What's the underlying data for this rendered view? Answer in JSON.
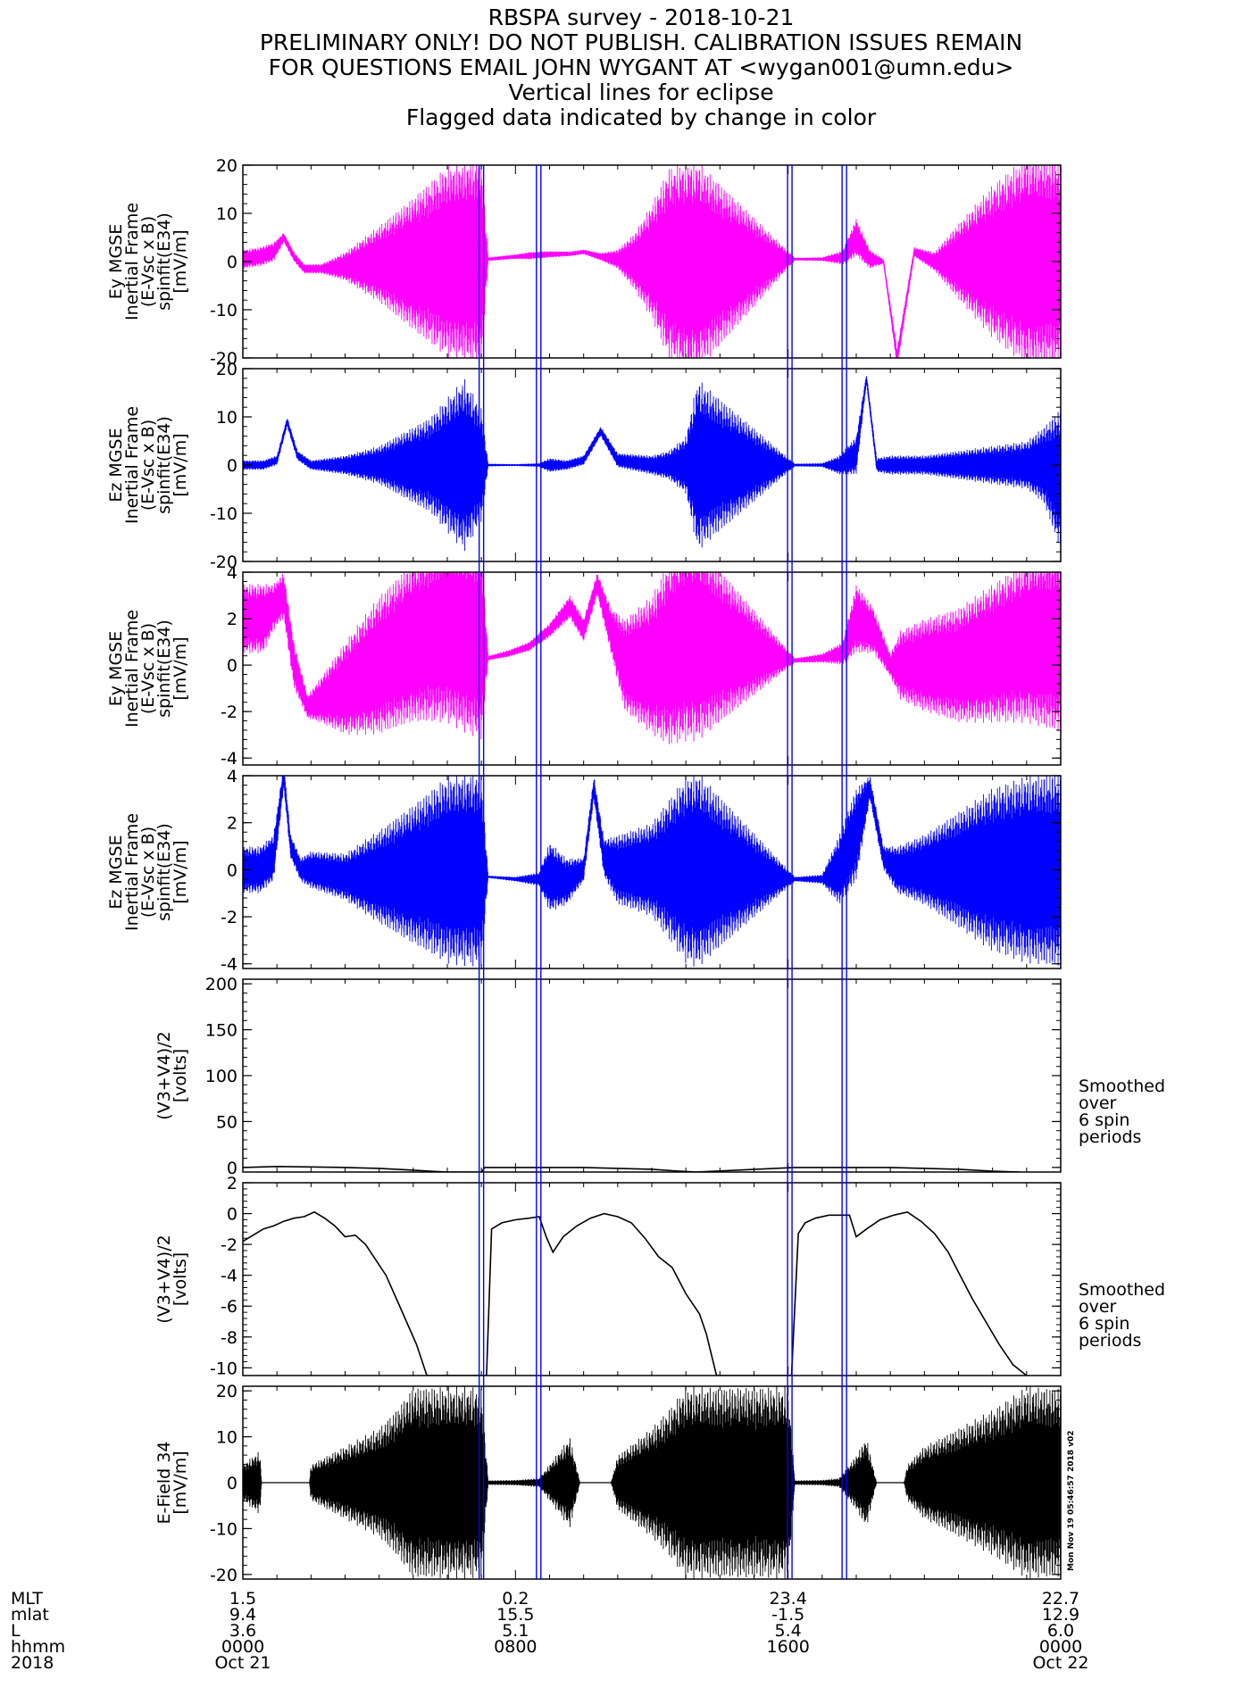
{
  "chart_data": {
    "type": "line",
    "title_lines": [
      "RBSPA survey - 2018-10-21",
      "PRELIMINARY ONLY! DO NOT PUBLISH. CALIBRATION ISSUES REMAIN",
      "FOR QUESTIONS EMAIL JOHN WYGANT AT <wygan001@umn.edu>",
      "Vertical lines for eclipse",
      "Flagged data indicated by change in color"
    ],
    "x_unit": "hours since 2018-10-21 0000",
    "xlim": [
      0,
      24
    ],
    "eclipse_lines_hours": [
      7.0,
      8.68,
      16.05,
      17.65
    ],
    "panels": [
      {
        "ylabel": [
          "Ey MGSE",
          "Inertial Frame",
          "(E-Vsc x B)",
          "spinfit(E34)",
          "[mV/m]"
        ],
        "ylim": [
          -20,
          20
        ],
        "yticks": [
          -20,
          -10,
          0,
          10,
          20
        ],
        "color": "#ff00ff",
        "style": "band",
        "x": [
          0,
          0.5,
          0.9,
          1.2,
          1.5,
          1.8,
          2.3,
          3,
          4,
          5,
          6,
          7,
          7.2,
          8,
          8.4,
          9,
          9.6,
          10,
          10.5,
          11,
          11.5,
          12,
          12.5,
          13,
          13.35,
          16.2,
          17,
          17.6,
          18,
          18.4,
          18.8,
          19.2,
          19.7,
          20.3,
          21,
          22,
          23,
          24
        ],
        "center": [
          0.5,
          1,
          2,
          5,
          1,
          -1.5,
          -1.5,
          -1,
          -0.5,
          -0.5,
          0,
          0,
          0.5,
          1,
          1.2,
          1.5,
          1.6,
          2,
          1,
          0.5,
          0,
          0,
          -0.5,
          -1,
          -1,
          0.5,
          0.5,
          0.8,
          5,
          0.5,
          0,
          -20,
          2,
          0,
          0,
          0,
          0,
          0
        ],
        "amp": [
          2,
          2,
          2,
          1,
          1,
          1,
          1,
          3,
          8,
          14,
          20,
          22,
          0.4,
          0.5,
          0.8,
          0.7,
          0.5,
          0.5,
          0.8,
          2,
          6,
          12,
          20,
          22,
          22,
          0.3,
          0.4,
          1.5,
          4,
          2,
          0.5,
          2,
          1,
          2,
          8,
          16,
          22,
          22
        ]
      },
      {
        "ylabel": [
          "Ez MGSE",
          "Inertial Frame",
          "(E-Vsc x B)",
          "spinfit(E34)",
          "[mV/m]"
        ],
        "ylim": [
          -20,
          20
        ],
        "yticks": [
          -20,
          -10,
          0,
          10,
          20
        ],
        "color": "#0000ff",
        "style": "band",
        "x": [
          0,
          0.6,
          1,
          1.3,
          1.6,
          2,
          3,
          4,
          5,
          5.5,
          6,
          6.5,
          7,
          7.2,
          8,
          8.7,
          9,
          9.5,
          10,
          10.5,
          11,
          12,
          12.5,
          13,
          13.35,
          16.2,
          17,
          17.5,
          18,
          18.3,
          18.6,
          19,
          20,
          21,
          22,
          23,
          23.5,
          24
        ],
        "center": [
          0,
          0,
          1,
          9,
          2,
          0,
          0,
          0,
          0,
          0,
          0,
          0,
          0,
          0,
          0,
          0,
          0,
          0,
          1,
          7,
          1,
          0,
          0,
          0,
          0,
          0,
          0,
          0,
          2,
          18,
          0,
          0,
          0,
          0,
          0,
          0,
          0,
          -3
        ],
        "amp": [
          1,
          1,
          1,
          1,
          1,
          1,
          2,
          4,
          8,
          10,
          14,
          18,
          12,
          0.3,
          0.2,
          0.4,
          1.5,
          1,
          1,
          1,
          1.5,
          2,
          3,
          6,
          18,
          0.3,
          0.4,
          2,
          4,
          1,
          1.5,
          2,
          2,
          3,
          4,
          5,
          8,
          15
        ]
      },
      {
        "ylabel": [
          "Ey MGSE",
          "Inertial Frame",
          "(E-Vsc x B)",
          "spinfit(E34)",
          "[mV/m]"
        ],
        "ylim": [
          -4.3,
          4
        ],
        "yticks": [
          -4,
          -2,
          0,
          2,
          4
        ],
        "color": "#ff00ff",
        "style": "band",
        "x": [
          0,
          0.6,
          0.9,
          1.2,
          1.5,
          1.9,
          2.3,
          3,
          4,
          5,
          6,
          7,
          7.2,
          7.8,
          8.4,
          9,
          9.6,
          10,
          10.4,
          10.8,
          11.2,
          12,
          12.5,
          13,
          13.35,
          16.2,
          17,
          17.6,
          18,
          18.5,
          19,
          19.3,
          20,
          21,
          22,
          23,
          24
        ],
        "center": [
          2,
          2,
          2.5,
          3,
          0,
          -1.8,
          -1.5,
          -1,
          0,
          1,
          1.5,
          1,
          0.3,
          0.5,
          0.8,
          1.5,
          2.5,
          1.5,
          3.5,
          1.5,
          0,
          0,
          0.5,
          1,
          1,
          0.2,
          0.3,
          0.5,
          2,
          1.5,
          0,
          0,
          0,
          0,
          0.5,
          1,
          1
        ],
        "amp": [
          1.5,
          1.5,
          1,
          1,
          1,
          0.5,
          1,
          2,
          3,
          3.5,
          4,
          4.3,
          0.1,
          0.15,
          0.2,
          0.3,
          0.5,
          0.5,
          0.5,
          1,
          2,
          3,
          4,
          4.3,
          4.3,
          0.1,
          0.2,
          0.5,
          1.5,
          1,
          0.5,
          1.5,
          2,
          2.5,
          3,
          3.5,
          4
        ]
      },
      {
        "ylabel": [
          "Ez MGSE",
          "Inertial Frame",
          "(E-Vsc x B)",
          "spinfit(E34)",
          "[mV/m]"
        ],
        "ylim": [
          -4.2,
          4
        ],
        "yticks": [
          -4,
          -2,
          0,
          2,
          4
        ],
        "color": "#0000ff",
        "style": "band",
        "x": [
          0,
          0.5,
          0.9,
          1.2,
          1.4,
          1.7,
          2,
          3,
          4,
          5,
          6,
          7,
          7.2,
          8,
          8.7,
          9,
          9.5,
          10,
          10.3,
          10.6,
          11,
          12,
          12.5,
          13,
          13.35,
          16.2,
          17,
          17.5,
          18,
          18.4,
          18.8,
          19.2,
          20,
          21,
          22,
          23,
          24
        ],
        "center": [
          0,
          0,
          0.5,
          4,
          1,
          0,
          0,
          -0.3,
          -0.3,
          -0.2,
          0,
          0,
          -0.3,
          -0.4,
          -0.4,
          -0.3,
          -0.5,
          0,
          3.5,
          0.5,
          0,
          0,
          0,
          0,
          0,
          -0.4,
          -0.4,
          0,
          1.5,
          3.5,
          0.5,
          0,
          0,
          0,
          0,
          0,
          0
        ],
        "amp": [
          1,
          1,
          1,
          0.5,
          0.5,
          0.5,
          0.8,
          1,
          2,
          3,
          4,
          4.2,
          0.05,
          0.1,
          0.3,
          1.5,
          1,
          0.5,
          0.5,
          0.8,
          1.5,
          2,
          3,
          4,
          4.2,
          0.1,
          0.2,
          1.5,
          2,
          0.5,
          0.5,
          1,
          1.5,
          2.5,
          3.5,
          4,
          4.2
        ]
      },
      {
        "ylabel": [
          "(V3+V4)/2",
          "[volts]"
        ],
        "ylim": [
          -5,
          205
        ],
        "yticks": [
          0,
          50,
          100,
          150,
          200
        ],
        "color": "#000000",
        "style": "line",
        "side_note": [
          "Smoothed",
          "over",
          "6 spin",
          "periods"
        ],
        "x": [
          0,
          1,
          2,
          3,
          4,
          5,
          5.5,
          6,
          6.5,
          7,
          7.1,
          8,
          9,
          10,
          11,
          12,
          12.8,
          13.3,
          16.2,
          17,
          18,
          19,
          20,
          21,
          22,
          22.8
        ],
        "values": [
          0,
          1,
          0.5,
          0,
          -1,
          -3,
          -4,
          -5,
          -5,
          -5,
          0,
          0,
          0,
          0,
          -1,
          -2,
          -4,
          -5,
          0,
          0,
          0,
          0,
          -1,
          -2,
          -4,
          -5
        ]
      },
      {
        "ylabel": [
          "(V3+V4)/2",
          "[volts]"
        ],
        "ylim": [
          -10.5,
          2
        ],
        "yticks": [
          -10,
          -8,
          -6,
          -4,
          -2,
          0,
          2
        ],
        "color": "#000000",
        "style": "line",
        "side_note": [
          "Smoothed",
          "over",
          "6 spin",
          "periods"
        ],
        "x": [
          0,
          0.3,
          0.6,
          0.9,
          1.2,
          1.5,
          1.8,
          2.1,
          2.4,
          2.7,
          3,
          3.3,
          3.6,
          3.9,
          4.2,
          4.5,
          4.8,
          5.1,
          5.4,
          5.8,
          6.2,
          6.6,
          7,
          7.15,
          7.3,
          7.6,
          8,
          8.4,
          8.7,
          8.9,
          9.1,
          9.4,
          9.8,
          10.2,
          10.6,
          11,
          11.4,
          11.8,
          12.2,
          12.6,
          13,
          13.4,
          13.6,
          13.9,
          16.1,
          16.3,
          16.5,
          16.8,
          17.2,
          17.6,
          17.8,
          18,
          18.3,
          18.7,
          19.1,
          19.5,
          19.9,
          20.3,
          20.7,
          21,
          21.4,
          21.8,
          22.2,
          22.6,
          23
        ],
        "values": [
          -1.8,
          -1.4,
          -1.0,
          -0.8,
          -0.5,
          -0.3,
          -0.2,
          0.1,
          -0.3,
          -0.8,
          -1.5,
          -1.4,
          -2,
          -3,
          -4,
          -5.5,
          -7,
          -8.5,
          -10.5,
          -10.5,
          -10.5,
          -10.5,
          -10.5,
          -10.5,
          -1,
          -0.6,
          -0.4,
          -0.3,
          -0.2,
          -1.5,
          -2.5,
          -1.5,
          -0.8,
          -0.3,
          0,
          -0.2,
          -0.6,
          -1.6,
          -2.8,
          -3.5,
          -5.2,
          -6.5,
          -7.8,
          -10.5,
          -10.5,
          -1.3,
          -0.6,
          -0.3,
          -0.1,
          -0.1,
          -0.1,
          -1.5,
          -1.0,
          -0.4,
          -0.1,
          0.1,
          -0.5,
          -1.3,
          -2.5,
          -3.8,
          -5.5,
          -7.0,
          -8.5,
          -9.8,
          -10.5
        ]
      },
      {
        "ylabel": [
          "E-Field 34",
          "[mV/m]"
        ],
        "ylim": [
          -21,
          21
        ],
        "yticks": [
          -20,
          -10,
          0,
          10,
          20
        ],
        "color": "#000000",
        "style": "band",
        "x": [
          0,
          0.5,
          0.55,
          1.95,
          2,
          2.5,
          3,
          3.5,
          4,
          4.5,
          5,
          5.5,
          6,
          6.5,
          7,
          7.2,
          8,
          8.7,
          9,
          9.3,
          9.6,
          9.9,
          10.3,
          10.8,
          11,
          11.5,
          12,
          12.5,
          13,
          13.5,
          14,
          15,
          16,
          16.2,
          17,
          17.5,
          17.7,
          18,
          18.3,
          18.6,
          18.9,
          19.4,
          19.5,
          20,
          21,
          22,
          23,
          24
        ],
        "center": [
          0,
          0,
          0,
          0,
          0,
          0,
          0,
          0,
          0,
          0,
          0,
          0,
          0,
          0,
          0,
          0,
          0,
          0,
          0,
          0,
          0,
          0,
          0,
          0,
          0,
          0,
          0,
          0,
          0,
          0,
          0,
          0,
          0,
          0,
          0,
          0,
          0,
          0,
          0,
          0,
          0,
          0,
          0,
          0,
          0,
          0,
          0,
          0
        ],
        "amp": [
          4,
          7,
          0,
          0,
          4,
          6,
          8,
          10,
          12,
          16,
          21,
          21,
          21,
          21,
          21,
          0.5,
          0.6,
          1,
          4,
          7,
          10,
          0,
          0,
          0,
          6,
          9,
          12,
          16,
          21,
          21,
          21,
          21,
          21,
          0.5,
          0.6,
          1,
          3,
          6,
          10,
          0,
          0,
          0,
          4,
          8,
          12,
          16,
          21,
          21
        ]
      }
    ]
  },
  "footer": {
    "row_labels": [
      "MLT",
      "mlat",
      "L",
      "hhmm",
      "2018"
    ],
    "columns": [
      {
        "hours": 0,
        "values": [
          "1.5",
          "9.4",
          "3.6",
          "0000",
          "Oct 21"
        ]
      },
      {
        "hours": 8,
        "values": [
          "0.2",
          "15.5",
          "5.1",
          "0800",
          ""
        ]
      },
      {
        "hours": 16,
        "values": [
          "23.4",
          "-1.5",
          "5.4",
          "1600",
          ""
        ]
      },
      {
        "hours": 24,
        "values": [
          "22.7",
          "12.9",
          "6.0",
          "0000",
          "Oct 22"
        ]
      }
    ],
    "timestamp": "Mon Nov 19 05:46:57 2018 v02"
  },
  "colors": {
    "eclipse": "#0000ff",
    "flagged": "#ff00ff",
    "data": "#0000ff",
    "axis": "#000000"
  }
}
